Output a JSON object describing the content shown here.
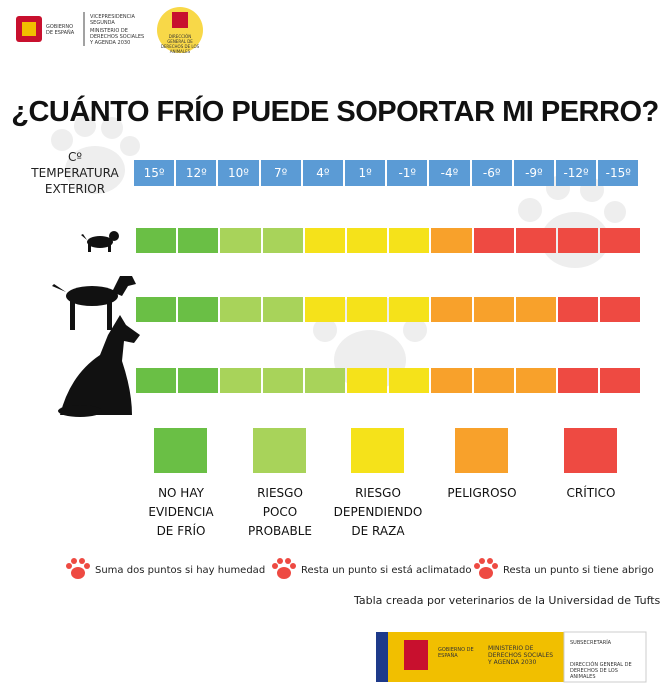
{
  "header": {
    "gov": "GOBIERNO DE ESPAÑA",
    "vice": "VICEPRESIDENCIA SEGUNDA",
    "ministry": "MINISTERIO DE DERECHOS SOCIALES Y AGENDA 2030",
    "directorate": "DIRECCIÓN GENERAL DE DERECHOS DE LOS ANIMALES"
  },
  "title": "¿CUÁNTO FRÍO PUEDE SOPORTAR MI PERRO?",
  "temp_label": [
    "Cº",
    "TEMPERATURA",
    "EXTERIOR"
  ],
  "temperatures": [
    "15º",
    "12º",
    "10º",
    "7º",
    "4º",
    "1º",
    "-1º",
    "-4º",
    "-6º",
    "-9º",
    "-12º",
    "-15º"
  ],
  "temp_color": "#5b9bd5",
  "rows": [
    {
      "cells": [
        "#6abf45",
        "#6abf45",
        "#a8d35a",
        "#a8d35a",
        "#f5e21a",
        "#f5e21a",
        "#f5e21a",
        "#f8a12b",
        "#ee4a42",
        "#ee4a42",
        "#ee4a42",
        "#ee4a42"
      ]
    },
    {
      "cells": [
        "#6abf45",
        "#6abf45",
        "#a8d35a",
        "#a8d35a",
        "#f5e21a",
        "#f5e21a",
        "#f5e21a",
        "#f8a12b",
        "#f8a12b",
        "#f8a12b",
        "#ee4a42",
        "#ee4a42"
      ]
    },
    {
      "cells": [
        "#6abf45",
        "#6abf45",
        "#a8d35a",
        "#a8d35a",
        "#a8d35a",
        "#f5e21a",
        "#f5e21a",
        "#f8a12b",
        "#f8a12b",
        "#f8a12b",
        "#ee4a42",
        "#ee4a42"
      ]
    }
  ],
  "legend": [
    {
      "color": "#6abf45",
      "label": [
        "NO HAY",
        "EVIDENCIA",
        "DE FRÍO"
      ]
    },
    {
      "color": "#a8d35a",
      "label": [
        "RIESGO",
        "POCO",
        "PROBABLE"
      ]
    },
    {
      "color": "#f5e21a",
      "label": [
        "RIESGO",
        "DEPENDIENDO",
        "DE RAZA"
      ]
    },
    {
      "color": "#f8a12b",
      "label": [
        "PELIGROSO"
      ]
    },
    {
      "color": "#ee4a42",
      "label": [
        "CRÍTICO"
      ]
    }
  ],
  "notes": [
    "Suma dos puntos si hay humedad",
    "Resta un punto si está aclimatado",
    "Resta un punto si tiene abrigo"
  ],
  "credit": "Tabla creada por veterinarios de la Universidad de Tufts",
  "footer": {
    "gov": "GOBIERNO DE ESPAÑA",
    "ministry": "MINISTERIO DE DERECHOS SOCIALES Y AGENDA 2030",
    "sub": "SUBSECRETARÍA",
    "directorate": "DIRECCIÓN GENERAL DE DERECHOS DE LOS ANIMALES"
  }
}
